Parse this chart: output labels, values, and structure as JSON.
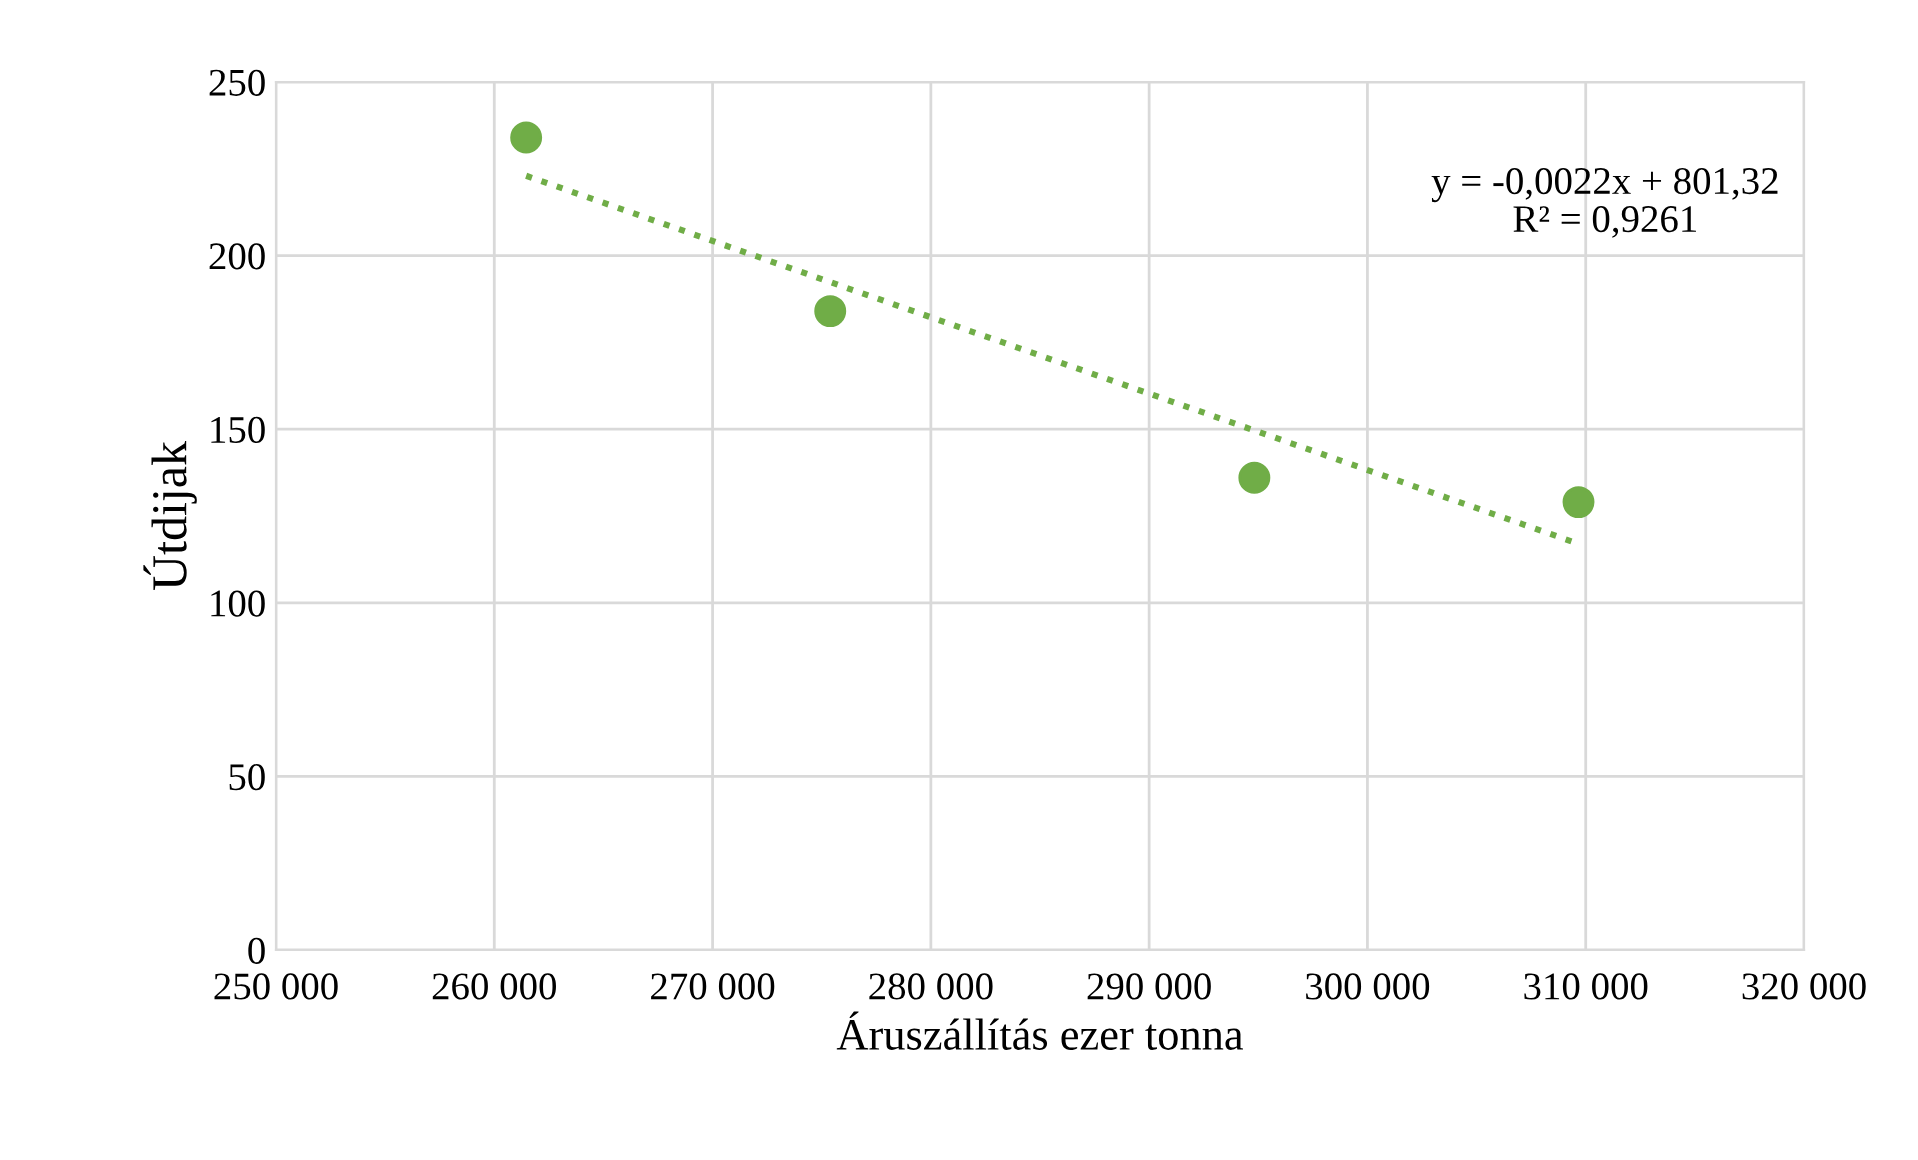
{
  "chart_data": {
    "type": "scatter",
    "xlabel": "Áruszállítás ezer tonna",
    "ylabel": "Útdijak",
    "series": [
      {
        "color": "#70ad47",
        "marker": "circle",
        "x": [
          261460,
          275390,
          294820,
          309670
        ],
        "values": [
          234,
          184,
          136,
          129
        ]
      },
      {
        "type": "line",
        "color": "#70ad47",
        "line_style": "dotted",
        "marker": "none",
        "x": [
          261460,
          309670
        ],
        "values": [
          223,
          117
        ]
      }
    ],
    "xlim": [
      250000,
      320000
    ],
    "xticks": [
      {
        "value": 250000,
        "label": "250 000"
      },
      {
        "value": 260000,
        "label": "260 000"
      },
      {
        "value": 270000,
        "label": "270 000"
      },
      {
        "value": 280000,
        "label": "280 000"
      },
      {
        "value": 290000,
        "label": "290 000"
      },
      {
        "value": 300000,
        "label": "300 000"
      },
      {
        "value": 310000,
        "label": "310 000"
      },
      {
        "value": 320000,
        "label": "320 000"
      }
    ],
    "ylim": [
      0,
      250
    ],
    "yticks": [
      0,
      50,
      100,
      150,
      200,
      250
    ],
    "grid": true,
    "legend": false,
    "annotations": [
      "y = -0,0022x + 801,32\nR² = 0,9261"
    ]
  }
}
